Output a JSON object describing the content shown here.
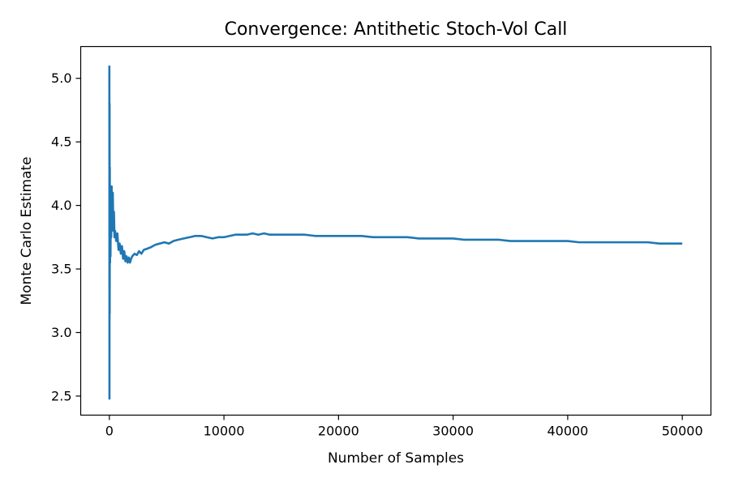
{
  "chart_data": {
    "type": "line",
    "title": "Convergence: Antithetic Stoch-Vol Call",
    "xlabel": "Number of Samples",
    "ylabel": "Monte Carlo Estimate",
    "xlim": [
      -2500,
      52500
    ],
    "ylim": [
      2.35,
      5.25
    ],
    "xticks": [
      0,
      10000,
      20000,
      30000,
      40000,
      50000
    ],
    "xtick_labels": [
      "0",
      "10000",
      "20000",
      "30000",
      "40000",
      "50000"
    ],
    "yticks": [
      2.5,
      3.0,
      3.5,
      4.0,
      4.5,
      5.0
    ],
    "ytick_labels": [
      "2.5",
      "3.0",
      "3.5",
      "4.0",
      "4.5",
      "5.0"
    ],
    "grid": false,
    "legend": false,
    "series_color": "#1f77b4",
    "series": [
      {
        "x": [
          0,
          10,
          20,
          30,
          40,
          60,
          80,
          100,
          130,
          160,
          200,
          250,
          300,
          350,
          400,
          450,
          500,
          600,
          700,
          800,
          900,
          1000,
          1100,
          1200,
          1300,
          1400,
          1500,
          1600,
          1700,
          1800,
          1900,
          2000,
          2200,
          2400,
          2600,
          2800,
          3000,
          3300,
          3600,
          4000,
          4400,
          4800,
          5200,
          5600,
          6000,
          6500,
          7000,
          7500,
          8000,
          8500,
          9000,
          9500,
          10000,
          10500,
          11000,
          11500,
          12000,
          12500,
          13000,
          13500,
          14000,
          15000,
          16000,
          17000,
          18000,
          19000,
          20000,
          21000,
          22000,
          23000,
          24000,
          25000,
          26000,
          27000,
          28000,
          29000,
          30000,
          31000,
          32000,
          33000,
          34000,
          35000,
          36000,
          37000,
          38000,
          39000,
          40000,
          41000,
          42000,
          43000,
          44000,
          45000,
          46000,
          47000,
          48000,
          49000,
          50000
        ],
        "y": [
          5.1,
          2.48,
          4.8,
          3.15,
          4.3,
          3.55,
          3.9,
          3.6,
          4.05,
          3.75,
          4.15,
          3.85,
          4.1,
          3.8,
          3.95,
          3.75,
          3.8,
          3.72,
          3.78,
          3.65,
          3.7,
          3.62,
          3.68,
          3.58,
          3.64,
          3.56,
          3.6,
          3.55,
          3.59,
          3.55,
          3.58,
          3.6,
          3.62,
          3.61,
          3.64,
          3.62,
          3.65,
          3.66,
          3.67,
          3.69,
          3.7,
          3.71,
          3.7,
          3.72,
          3.73,
          3.74,
          3.75,
          3.76,
          3.76,
          3.75,
          3.74,
          3.75,
          3.75,
          3.76,
          3.77,
          3.77,
          3.77,
          3.78,
          3.77,
          3.78,
          3.77,
          3.77,
          3.77,
          3.77,
          3.76,
          3.76,
          3.76,
          3.76,
          3.76,
          3.75,
          3.75,
          3.75,
          3.75,
          3.74,
          3.74,
          3.74,
          3.74,
          3.73,
          3.73,
          3.73,
          3.73,
          3.72,
          3.72,
          3.72,
          3.72,
          3.72,
          3.72,
          3.71,
          3.71,
          3.71,
          3.71,
          3.71,
          3.71,
          3.71,
          3.7,
          3.7,
          3.7
        ]
      }
    ]
  }
}
